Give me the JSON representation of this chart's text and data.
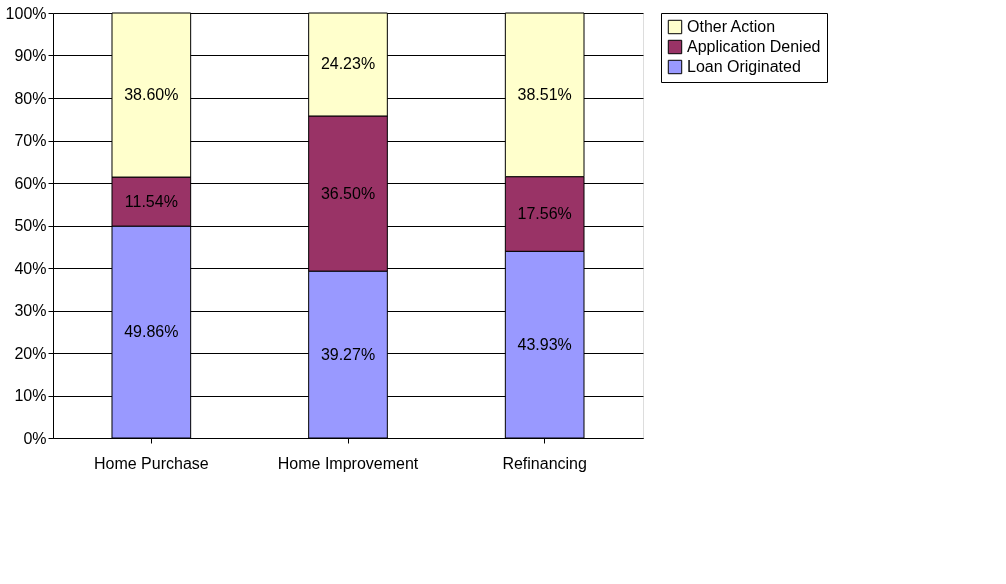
{
  "chart_data": {
    "type": "bar",
    "stacked": true,
    "categories": [
      "Home Purchase",
      "Home Improvement",
      "Refinancing"
    ],
    "series": [
      {
        "name": "Loan Originated",
        "color": "#9999ff",
        "values": [
          49.86,
          39.27,
          43.93
        ],
        "value_labels": [
          "49.86%",
          "39.27%",
          "43.93%"
        ]
      },
      {
        "name": "Application Denied",
        "color": "#993366",
        "values": [
          11.54,
          36.5,
          17.56
        ],
        "value_labels": [
          "11.54%",
          "36.50%",
          "17.56%"
        ]
      },
      {
        "name": "Other Action",
        "color": "#ffffcc",
        "values": [
          38.6,
          24.23,
          38.51
        ],
        "value_labels": [
          "38.60%",
          "24.23%",
          "38.51%"
        ]
      }
    ],
    "ylim": [
      0,
      100
    ],
    "yticks": [
      {
        "value": 0,
        "label": "0%"
      },
      {
        "value": 10,
        "label": "10%"
      },
      {
        "value": 20,
        "label": "20%"
      },
      {
        "value": 30,
        "label": "30%"
      },
      {
        "value": 40,
        "label": "40%"
      },
      {
        "value": 50,
        "label": "50%"
      },
      {
        "value": 60,
        "label": "60%"
      },
      {
        "value": 70,
        "label": "70%"
      },
      {
        "value": 80,
        "label": "80%"
      },
      {
        "value": 90,
        "label": "90%"
      },
      {
        "value": 100,
        "label": "100%"
      }
    ],
    "grid": "y",
    "legend": "right"
  }
}
